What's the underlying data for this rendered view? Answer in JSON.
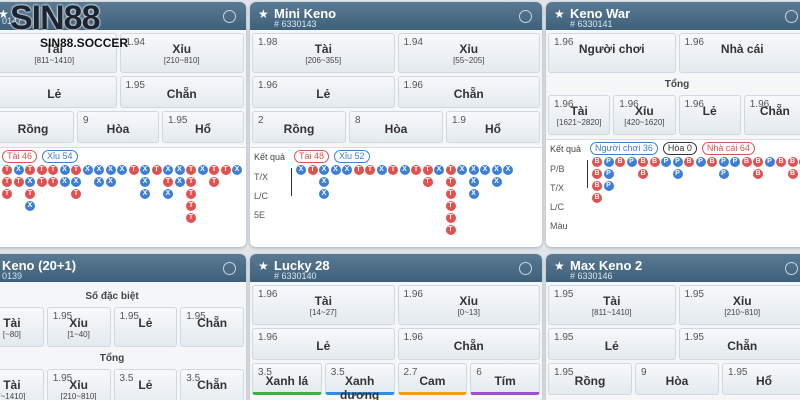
{
  "logo": {
    "brand": "SIN88",
    "site": "SIN88.SOCCER"
  },
  "bead_colors": {
    "T": "#e0524f",
    "X": "#3d7fd6",
    "P": "#3d7fd6",
    "B": "#e0524f"
  },
  "panels": [
    {
      "id": "0147",
      "body": [
        {
          "row": [
            {
              "label": "Tài",
              "sub": "[811~1410]"
            },
            {
              "odds": "1.94",
              "label": "Xỉu",
              "sub": "[210~810]"
            }
          ]
        },
        {
          "row": [
            {
              "label": "Lẻ"
            },
            {
              "odds": "1.95",
              "label": "Chẵn"
            }
          ]
        },
        {
          "row": [
            {
              "label": "Rồng"
            },
            {
              "odds": "9",
              "label": "Hòa"
            },
            {
              "odds": "1.95",
              "label": "Hổ"
            }
          ]
        }
      ],
      "results": {
        "tags": [
          {
            "text": "Tài 46",
            "color": "#e0524f"
          },
          {
            "text": "Xỉu 54",
            "color": "#3d7fd6"
          }
        ],
        "beads": [
          [
            "T",
            "T",
            "T"
          ],
          [
            "X",
            "T"
          ],
          [
            "T",
            "X",
            "T",
            "X"
          ],
          [
            "T",
            "T"
          ],
          [
            "T",
            "T"
          ],
          [
            "X",
            "X"
          ],
          [
            "T",
            "X",
            "T"
          ],
          [
            "X"
          ],
          [
            "X",
            "X"
          ],
          [
            "X",
            "X"
          ],
          [
            "X"
          ],
          [
            "T"
          ],
          [
            "X",
            "X",
            "X"
          ],
          [
            "T"
          ],
          [
            "X",
            "T",
            "X"
          ],
          [
            "X",
            "X"
          ],
          [
            "T",
            "T",
            "T",
            "T",
            "T"
          ],
          [
            "X"
          ],
          [
            "T",
            "T"
          ],
          [
            "T"
          ],
          [
            "X"
          ]
        ]
      }
    },
    {
      "title": "Mini Keno",
      "id": "# 6330143",
      "body": [
        {
          "row": [
            {
              "odds": "1.98",
              "label": "Tài",
              "sub": "[206~355]"
            },
            {
              "odds": "1.94",
              "label": "Xỉu",
              "sub": "[55~205]"
            }
          ]
        },
        {
          "row": [
            {
              "odds": "1.96",
              "label": "Lẻ"
            },
            {
              "odds": "1.96",
              "label": "Chẵn"
            }
          ]
        },
        {
          "row": [
            {
              "odds": "2",
              "label": "Rồng"
            },
            {
              "odds": "8",
              "label": "Hòa"
            },
            {
              "odds": "1.9",
              "label": "Hổ"
            }
          ]
        }
      ],
      "results": {
        "label": "Kết quả",
        "tags": [
          {
            "text": "Tài 48",
            "color": "#e0524f"
          },
          {
            "text": "Xỉu 52",
            "color": "#3d7fd6"
          }
        ],
        "lanes": [
          "T/X",
          "L/C",
          "5E"
        ],
        "beads": [
          [
            "X"
          ],
          [
            "T"
          ],
          [
            "X",
            "X",
            "X"
          ],
          [
            "X"
          ],
          [
            "X"
          ],
          [
            "T"
          ],
          [
            "T"
          ],
          [
            "X"
          ],
          [
            "T"
          ],
          [
            "X"
          ],
          [
            "T"
          ],
          [
            "T",
            "T"
          ],
          [
            "X"
          ],
          [
            "T",
            "T",
            "T",
            "T",
            "T",
            "T"
          ],
          [
            "X"
          ],
          [
            "X",
            "X",
            "X"
          ],
          [
            "X"
          ],
          [
            "X",
            "X"
          ],
          [
            "X"
          ]
        ]
      }
    },
    {
      "title": "Keno War",
      "id": "# 6330141",
      "body": [
        {
          "row": [
            {
              "odds": "1.96",
              "label": "Người chơi"
            },
            {
              "odds": "1.96",
              "label": "Nhà cái"
            }
          ]
        },
        {
          "section": "Tổng"
        },
        {
          "row": [
            {
              "odds": "1.96",
              "label": "Tài",
              "sub": "[1621~2820]"
            },
            {
              "odds": "1.96",
              "label": "Xỉu",
              "sub": "[420~1620]"
            },
            {
              "odds": "1.96",
              "label": "Lẻ"
            },
            {
              "odds": "1.96",
              "label": "Chẵn"
            }
          ]
        }
      ],
      "results": {
        "label": "Kết quả",
        "tags": [
          {
            "text": "Người chơi 36",
            "color": "#3d7fd6"
          },
          {
            "text": "Hòa 0",
            "color": "#333333"
          },
          {
            "text": "Nhà cái 64",
            "color": "#e0524f"
          }
        ],
        "lanes": [
          "P/B",
          "T/X",
          "L/C",
          "Màu"
        ],
        "beads": [
          [
            "B",
            "B",
            "B",
            "B"
          ],
          [
            "P",
            "P",
            "P"
          ],
          [
            "B"
          ],
          [
            "P"
          ],
          [
            "B",
            "B"
          ],
          [
            "B"
          ],
          [
            "P"
          ],
          [
            "P",
            "P"
          ],
          [
            "B"
          ],
          [
            "P"
          ],
          [
            "B"
          ],
          [
            "P",
            "P"
          ],
          [
            "P"
          ],
          [
            "B"
          ],
          [
            "B",
            "B"
          ],
          [
            "P"
          ],
          [
            "B"
          ],
          [
            "B",
            "B"
          ],
          [
            "P"
          ],
          [
            "B"
          ]
        ]
      }
    },
    {
      "title": "Keno (20+1)",
      "id": "0139",
      "body": [
        {
          "section": "Số đặc biệt"
        },
        {
          "row": [
            {
              "label": "Tài",
              "sub": "[~80]"
            },
            {
              "odds": "1.95",
              "label": "Xỉu",
              "sub": "[1~40]"
            },
            {
              "odds": "1.95",
              "label": "Lẻ"
            },
            {
              "odds": "1.95",
              "label": "Chẵn"
            }
          ]
        },
        {
          "section": "Tổng"
        },
        {
          "row": [
            {
              "label": "Tài",
              "sub": "[~1410]"
            },
            {
              "odds": "1.95",
              "label": "Xỉu",
              "sub": "[210~810]"
            },
            {
              "odds": "3.5",
              "label": "Lẻ"
            },
            {
              "odds": "3.5",
              "label": "Chẵn"
            }
          ]
        }
      ]
    },
    {
      "title": "Lucky 28",
      "id": "# 6330140",
      "body": [
        {
          "row": [
            {
              "odds": "1.96",
              "label": "Tài",
              "sub": "[14~27]"
            },
            {
              "odds": "1.96",
              "label": "Xỉu",
              "sub": "[0~13]"
            }
          ]
        },
        {
          "row": [
            {
              "odds": "1.96",
              "label": "Lẻ"
            },
            {
              "odds": "1.96",
              "label": "Chẵn"
            }
          ]
        },
        {
          "row": [
            {
              "odds": "3.5",
              "label": "Xanh lá",
              "accent": "#3fae49"
            },
            {
              "odds": "3.5",
              "label": "Xanh dương",
              "accent": "#2f8ee0"
            },
            {
              "odds": "2.7",
              "label": "Cam",
              "accent": "#f39a1e"
            },
            {
              "odds": "6",
              "label": "Tím",
              "accent": "#9b4fd1"
            }
          ]
        }
      ]
    },
    {
      "title": "Max Keno 2",
      "id": "# 6330146",
      "body": [
        {
          "row": [
            {
              "odds": "1.95",
              "label": "Tài",
              "sub": "[811~1410]"
            },
            {
              "odds": "1.95",
              "label": "Xỉu",
              "sub": "[210~810]"
            }
          ]
        },
        {
          "row": [
            {
              "odds": "1.95",
              "label": "Lẻ"
            },
            {
              "odds": "1.95",
              "label": "Chẵn"
            }
          ]
        },
        {
          "row": [
            {
              "odds": "1.95",
              "label": "Rồng"
            },
            {
              "odds": "9",
              "label": "Hòa"
            },
            {
              "odds": "1.95",
              "label": "Hổ"
            }
          ]
        }
      ]
    }
  ]
}
